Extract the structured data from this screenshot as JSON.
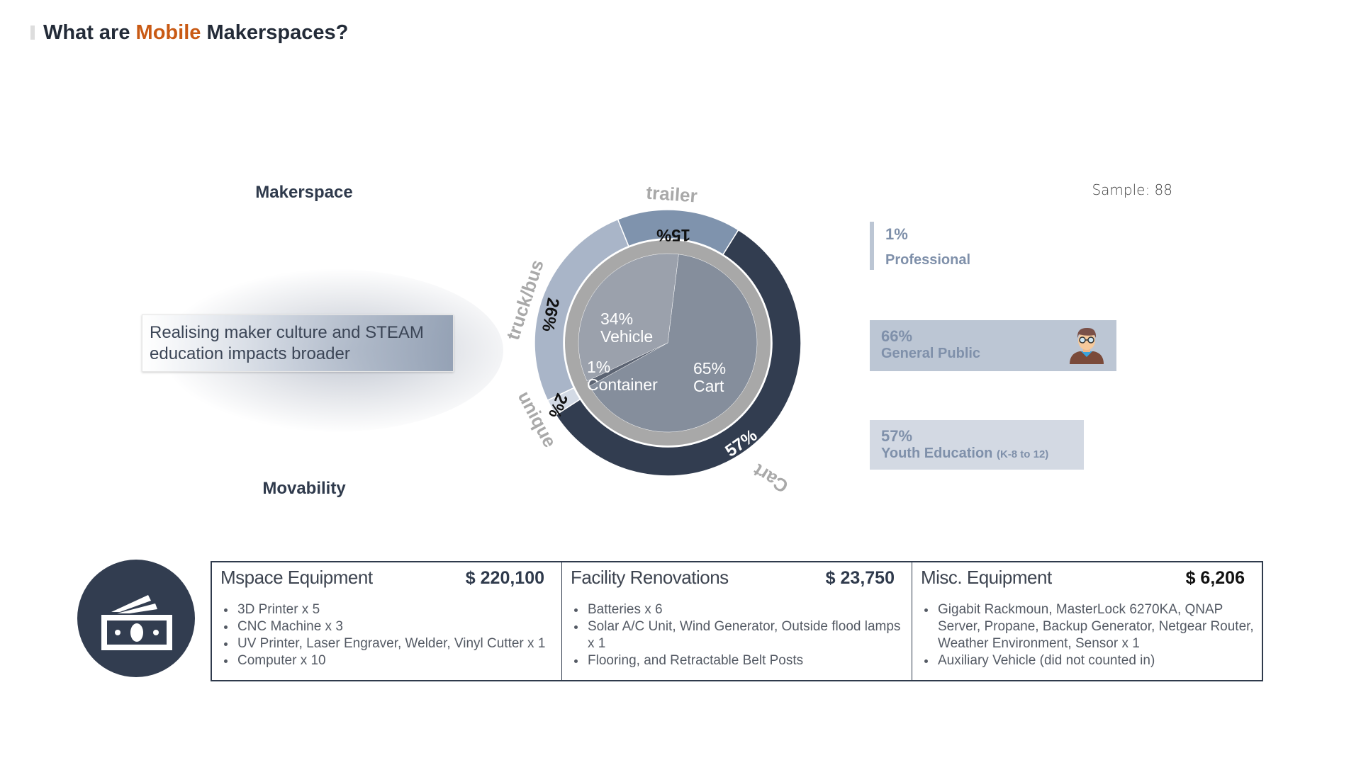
{
  "title": {
    "prefix": "What are",
    "highlight": "Mobile",
    "suffix": "Makerspaces?"
  },
  "labels": {
    "makerspace": "Makerspace",
    "movability": "Movability"
  },
  "tagline": "Realising maker culture and STEAM education impacts broader",
  "sample": "Sample: 88",
  "audience": [
    {
      "pct": "1%",
      "name": "Professional"
    },
    {
      "pct": "66%",
      "name": "General Public",
      "icon": "person-avatar-icon"
    },
    {
      "pct": "57%",
      "name": "Youth Education",
      "note": "(K-8 to 12)"
    }
  ],
  "colors": {
    "accent": "#c95a14",
    "dark": "#323d50",
    "trailer": "#7f93ad",
    "truck": "#a9b5c8",
    "unique": "#d3dae5",
    "ring": "#a8a8a8"
  },
  "chart_data": {
    "type": "pie",
    "title": "Movability",
    "outer": {
      "name": "Vehicle type",
      "segments": [
        {
          "label": "Cart",
          "pct_label": "57%",
          "value": 57,
          "color": "#323d50"
        },
        {
          "label": "unique",
          "pct_label": "2%",
          "value": 2,
          "color": "#d3dae5"
        },
        {
          "label": "truck/bus",
          "pct_label": "26%",
          "value": 26,
          "color": "#a9b5c8"
        },
        {
          "label": "trailer",
          "pct_label": "15%",
          "value": 15,
          "color": "#7f93ad"
        }
      ]
    },
    "inner": {
      "name": "Form",
      "segments": [
        {
          "label": "Cart",
          "pct_label": "65%",
          "value": 65,
          "color": "#858e9c"
        },
        {
          "label": "Container",
          "pct_label": "1%",
          "value": 1,
          "color": "#5b6372"
        },
        {
          "label": "Vehicle",
          "pct_label": "34%",
          "value": 34,
          "color": "#9ba1ac"
        }
      ]
    }
  },
  "costs": [
    {
      "name": "Mspace Equipment",
      "amount": "$ 220,100",
      "items": [
        "3D Printer x 5",
        "CNC Machine x 3",
        "UV Printer, Laser Engraver, Welder, Vinyl Cutter x 1",
        "Computer x 10"
      ]
    },
    {
      "name": "Facility Renovations",
      "amount": "$ 23,750",
      "items": [
        "Batteries x 6",
        "Solar A/C Unit, Wind Generator, Outside flood lamps x 1",
        "Flooring, and Retractable Belt Posts"
      ]
    },
    {
      "name": "Misc. Equipment",
      "amount": "$ 6,206",
      "items": [
        "Gigabit Rackmoun, MasterLock 6270KA, QNAP Server, Propane, Backup Generator, Netgear Router, Weather Environment, Sensor x 1",
        "Auxiliary Vehicle (did not counted in)"
      ]
    }
  ]
}
